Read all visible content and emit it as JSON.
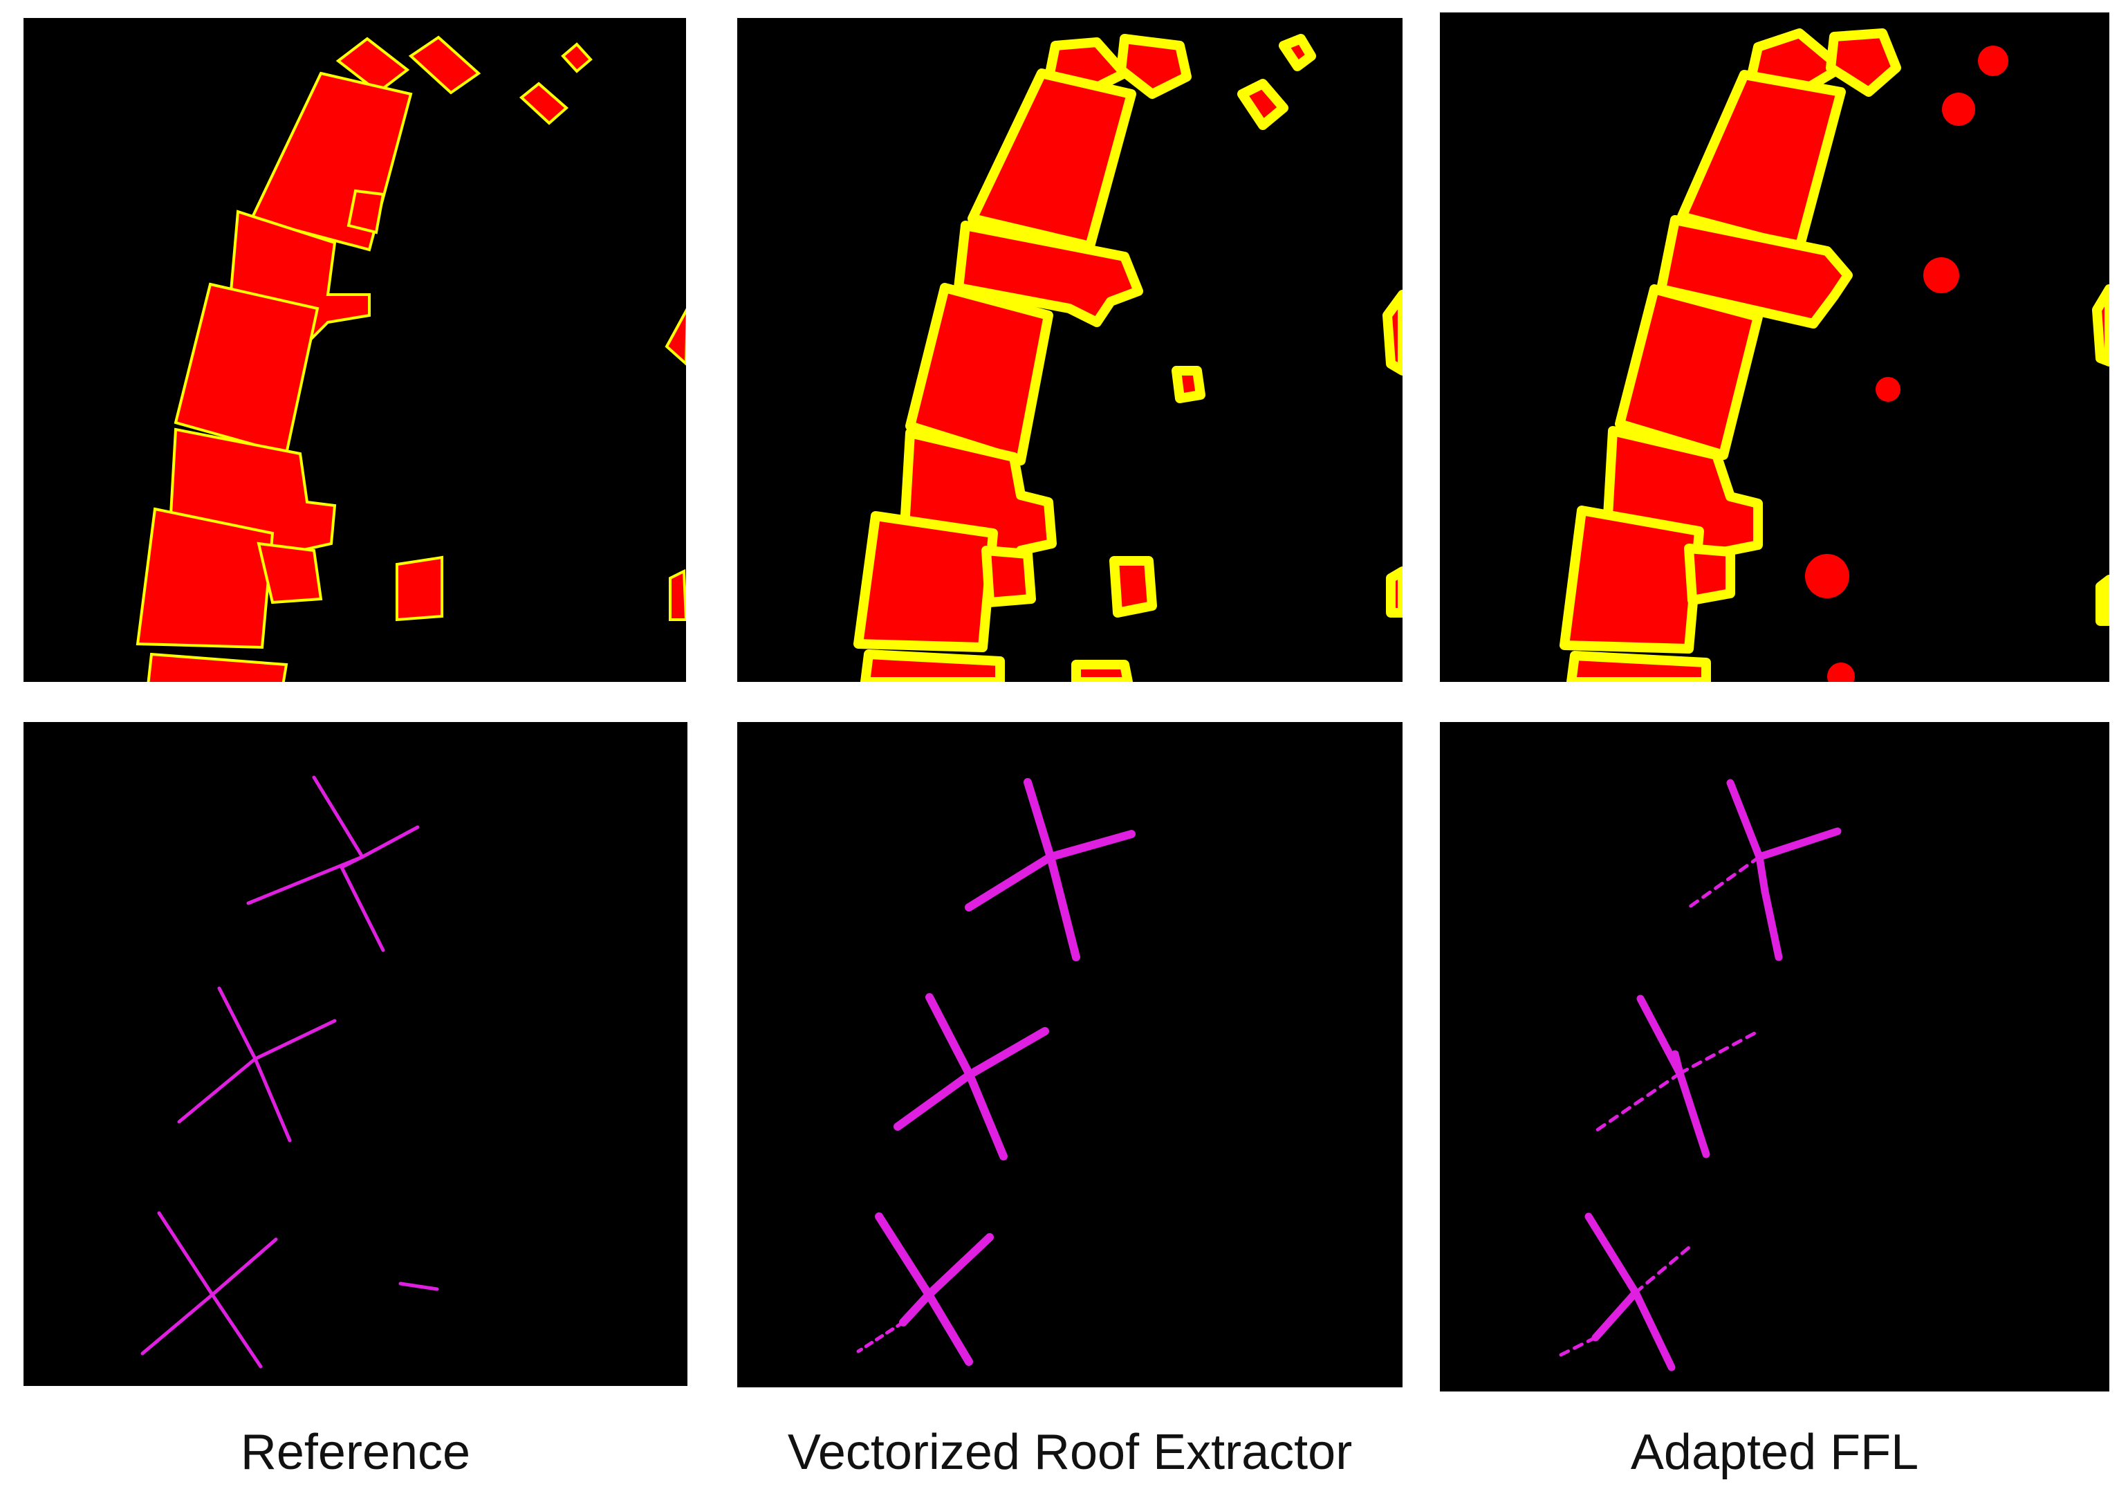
{
  "columns": [
    {
      "key": "reference",
      "label": "Reference"
    },
    {
      "key": "vre",
      "label": "Vectorized Roof Extractor"
    },
    {
      "key": "ffl",
      "label": "Adapted FFL"
    }
  ],
  "rows": [
    {
      "key": "roof-masks",
      "content": "red building footprints with yellow/green edges on black"
    },
    {
      "key": "roof-skeletons",
      "content": "magenta roof skeleton lines on black"
    }
  ],
  "colors": {
    "background": "#000000",
    "roof_fill": "#ff0000",
    "edge_yellow": "#ffff00",
    "edge_green": "#33dd22",
    "skeleton": "#e020e0",
    "page": "#ffffff"
  }
}
